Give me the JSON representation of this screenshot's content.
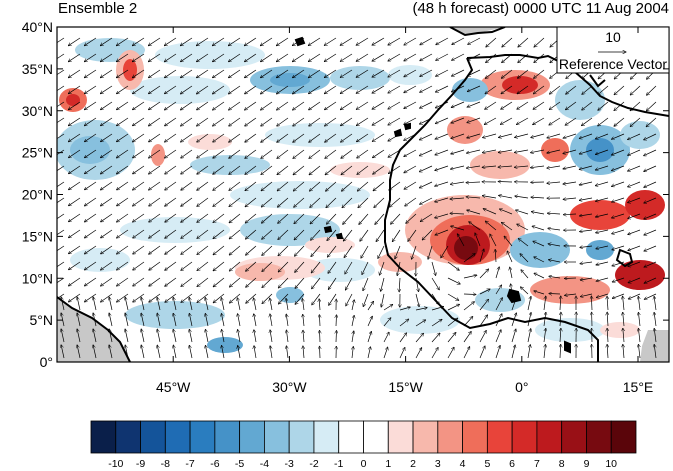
{
  "header": {
    "left_title": "Ensemble 2",
    "right_title": "(48 h forecast) 0000 UTC 11 Aug 2004"
  },
  "map": {
    "lon_range": [
      -60,
      19
    ],
    "lat_range": [
      0,
      40
    ],
    "lat_ticks": [
      {
        "value": 0,
        "label": "0°"
      },
      {
        "value": 5,
        "label": "5°N"
      },
      {
        "value": 10,
        "label": "10°N"
      },
      {
        "value": 15,
        "label": "15°N"
      },
      {
        "value": 20,
        "label": "20°N"
      },
      {
        "value": 25,
        "label": "25°N"
      },
      {
        "value": 30,
        "label": "30°N"
      },
      {
        "value": 35,
        "label": "35°N"
      },
      {
        "value": 40,
        "label": "40°N"
      }
    ],
    "lon_ticks": [
      {
        "value": -45,
        "label": "45°W"
      },
      {
        "value": -30,
        "label": "30°W"
      },
      {
        "value": -15,
        "label": "15°W"
      },
      {
        "value": 0,
        "label": "0°"
      },
      {
        "value": 15,
        "label": "15°E"
      }
    ],
    "land_color": "#c8c8c8",
    "coast_color": "#000000"
  },
  "reference_vector": {
    "magnitude": "10",
    "label": "Reference Vector"
  },
  "colorbar": {
    "levels": [
      "-10",
      "-9",
      "-8",
      "-7",
      "-6",
      "-5",
      "-4",
      "-3",
      "-2",
      "-1",
      "0",
      "1",
      "2",
      "3",
      "4",
      "5",
      "6",
      "7",
      "8",
      "9",
      "10"
    ],
    "colors": [
      "#0a1f4a",
      "#0f3470",
      "#14549a",
      "#1f6cb4",
      "#2a7dbf",
      "#4592c8",
      "#62a8d2",
      "#87c0de",
      "#aed6e8",
      "#d6ecf5",
      "#ffffff",
      "#ffffff",
      "#fbdcd8",
      "#f7b8ac",
      "#f39484",
      "#ef6e5a",
      "#e8443a",
      "#d42a28",
      "#bd1a1e",
      "#991016",
      "#770a10",
      "#5a050a"
    ]
  }
}
